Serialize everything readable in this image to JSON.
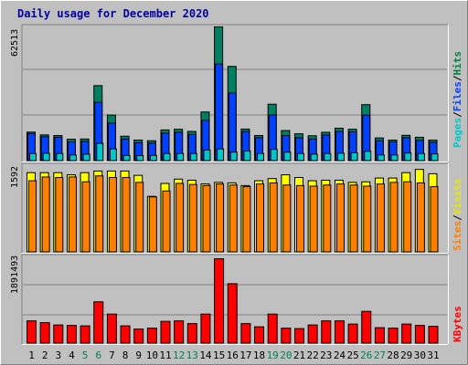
{
  "chart_data": [
    {
      "type": "bar",
      "title": "Daily usage for December 2020",
      "categories": [
        "1",
        "2",
        "3",
        "4",
        "5",
        "6",
        "7",
        "8",
        "9",
        "10",
        "11",
        "12",
        "13",
        "14",
        "15",
        "16",
        "17",
        "18",
        "19",
        "20",
        "21",
        "22",
        "23",
        "24",
        "25",
        "26",
        "27",
        "28",
        "29",
        "30",
        "31"
      ],
      "weekend_days": [
        "5",
        "6",
        "12",
        "13",
        "19",
        "20",
        "26",
        "27"
      ],
      "ytick_label": "62513",
      "ylim": [
        0,
        62513
      ],
      "legend": [
        {
          "label": "Pages",
          "color": "#00c8c8"
        },
        {
          "label": "Files",
          "color": "#0040ff"
        },
        {
          "label": "Hits",
          "color": "#008040"
        }
      ],
      "legend_separator": "/",
      "series": [
        {
          "name": "Hits",
          "color": "#008060",
          "values": [
            13200,
            11900,
            11600,
            9900,
            10000,
            34700,
            21100,
            11300,
            9500,
            9200,
            14200,
            14500,
            13500,
            22500,
            61900,
            43600,
            14600,
            11600,
            26100,
            13900,
            12400,
            11500,
            13100,
            15000,
            14500,
            25900,
            10500,
            9500,
            11700,
            10800,
            9500
          ]
        },
        {
          "name": "Files",
          "color": "#0040ff",
          "values": [
            12500,
            11100,
            10800,
            8700,
            8900,
            27000,
            17400,
            10000,
            8300,
            8100,
            12700,
            13100,
            12100,
            18600,
            44700,
            31300,
            13500,
            10600,
            21100,
            11600,
            10600,
            10000,
            11800,
            13500,
            13300,
            21000,
            9200,
            8700,
            10600,
            9400,
            8500
          ]
        },
        {
          "name": "Pages",
          "color": "#00c8c8",
          "values": [
            3300,
            3400,
            3300,
            2600,
            3000,
            8000,
            5400,
            2400,
            2300,
            2400,
            3300,
            3300,
            3300,
            4900,
            5400,
            3900,
            4400,
            3300,
            5200,
            3900,
            3300,
            3000,
            3300,
            3400,
            3600,
            4300,
            2600,
            2600,
            3500,
            3300,
            3100
          ]
        }
      ]
    },
    {
      "type": "bar",
      "categories": [
        "1",
        "2",
        "3",
        "4",
        "5",
        "6",
        "7",
        "8",
        "9",
        "10",
        "11",
        "12",
        "13",
        "14",
        "15",
        "16",
        "17",
        "18",
        "19",
        "20",
        "21",
        "22",
        "23",
        "24",
        "25",
        "26",
        "27",
        "28",
        "29",
        "30",
        "31"
      ],
      "ytick_label": "1592",
      "ylim": [
        0,
        1592
      ],
      "legend": [
        {
          "label": "Sites",
          "color": "#ff8000"
        },
        {
          "label": "Visits",
          "color": "#ffff00"
        }
      ],
      "legend_separator": "/",
      "series": [
        {
          "name": "Visits",
          "color": "#ffff00",
          "values": [
            1470,
            1470,
            1470,
            1430,
            1470,
            1500,
            1500,
            1500,
            1420,
            1030,
            1270,
            1350,
            1330,
            1260,
            1290,
            1280,
            1230,
            1320,
            1360,
            1430,
            1380,
            1320,
            1330,
            1330,
            1290,
            1300,
            1370,
            1370,
            1470,
            1530,
            1450
          ]
        },
        {
          "name": "Sites",
          "color": "#ff8000",
          "values": [
            1320,
            1390,
            1380,
            1390,
            1300,
            1410,
            1380,
            1380,
            1290,
            1020,
            1130,
            1270,
            1250,
            1230,
            1260,
            1240,
            1210,
            1260,
            1280,
            1240,
            1230,
            1220,
            1240,
            1260,
            1240,
            1220,
            1260,
            1290,
            1300,
            1280,
            1210
          ]
        }
      ]
    },
    {
      "type": "bar",
      "categories": [
        "1",
        "2",
        "3",
        "4",
        "5",
        "6",
        "7",
        "8",
        "9",
        "10",
        "11",
        "12",
        "13",
        "14",
        "15",
        "16",
        "17",
        "18",
        "19",
        "20",
        "21",
        "22",
        "23",
        "24",
        "25",
        "26",
        "27",
        "28",
        "29",
        "30",
        "31"
      ],
      "ytick_label": "1891493",
      "ylim": [
        0,
        1891493
      ],
      "legend": [
        {
          "label": "KBytes",
          "color": "#ff0000"
        }
      ],
      "series": [
        {
          "name": "KBytes",
          "color": "#ff0000",
          "values": [
            490000,
            450000,
            400000,
            390000,
            380000,
            910000,
            640000,
            380000,
            310000,
            330000,
            480000,
            490000,
            430000,
            640000,
            1860000,
            1310000,
            430000,
            360000,
            640000,
            330000,
            320000,
            400000,
            490000,
            490000,
            420000,
            700000,
            340000,
            330000,
            420000,
            390000,
            370000
          ]
        }
      ]
    }
  ]
}
